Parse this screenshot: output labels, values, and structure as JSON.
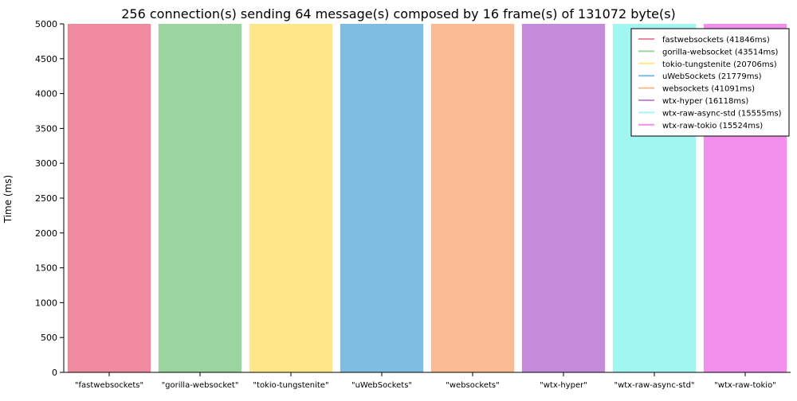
{
  "chart_data": {
    "type": "bar",
    "title": "256 connection(s) sending 64 message(s) composed by 16 frame(s) of 131072 byte(s)",
    "xlabel": "",
    "ylabel": "Time (ms)",
    "ylim": [
      0,
      5000
    ],
    "yticks": [
      0,
      500,
      1000,
      1500,
      2000,
      2500,
      3000,
      3500,
      4000,
      4500,
      5000
    ],
    "categories": [
      "\"fastwebsockets\"",
      "\"gorilla-websocket\"",
      "\"tokio-tungstenite\"",
      "\"uWebSockets\"",
      "\"websockets\"",
      "\"wtx-hyper\"",
      "\"wtx-raw-async-std\"",
      "\"wtx-raw-tokio\""
    ],
    "values": [
      41846,
      43514,
      20706,
      21779,
      41091,
      16118,
      15555,
      15524
    ],
    "colors": [
      "#ef8aa0",
      "#9bd49e",
      "#fde788",
      "#7ebce0",
      "#f8bb93",
      "#c38bd9",
      "#a2f6f2",
      "#f28fec"
    ],
    "legend": {
      "position": "top-right",
      "entries": [
        "fastwebsockets (41846ms)",
        "gorilla-websocket (43514ms)",
        "tokio-tungstenite (20706ms)",
        "uWebSockets (21779ms)",
        "websockets (41091ms)",
        "wtx-hyper (16118ms)",
        "wtx-raw-async-std (15555ms)",
        "wtx-raw-tokio (15524ms)"
      ]
    },
    "grid": false
  }
}
